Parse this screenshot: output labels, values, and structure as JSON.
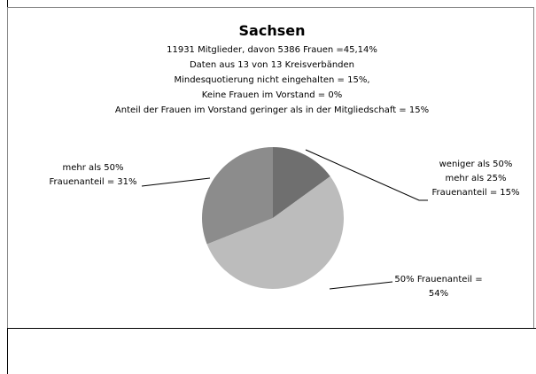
{
  "chart_data": {
    "type": "pie",
    "title": "Sachsen",
    "subtitle": [
      "11931 Mitglieder, davon 5386 Frauen =45,14%",
      "Daten aus 13 von 13  Kreisverbänden",
      "Mindesquotierung nicht eingehalten = 15%,",
      "Keine Frauen im Vorstand = 0%",
      "Anteil der Frauen im Vorstand geringer als in der Mitgliedschaft = 15%"
    ],
    "categories": [
      [
        "weniger als 50%",
        "mehr als 25%",
        "Frauenanteil ="
      ],
      [
        "50% Frauenanteil ="
      ],
      [
        "mehr als 50%",
        "Frauenanteil ="
      ]
    ],
    "values": [
      15,
      54,
      31
    ],
    "value_labels": [
      "15%",
      "54%",
      "31%"
    ],
    "colors": [
      "#6f6f6f",
      "#bcbcbc",
      "#8c8c8c"
    ]
  }
}
